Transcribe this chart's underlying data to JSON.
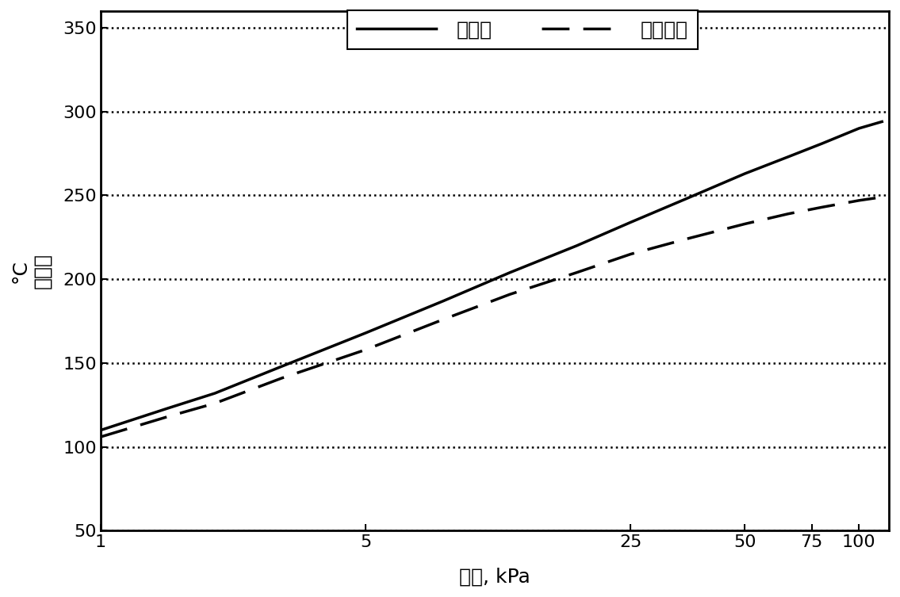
{
  "xlabel": "压力, kPa",
  "ylabel_line1": "°C",
  "ylabel_line2": "沸点，",
  "legend_solid": "呂喂酥",
  "legend_dashed": "邻苯二酥",
  "ylim": [
    50,
    360
  ],
  "yticks": [
    50,
    100,
    150,
    200,
    250,
    300,
    350
  ],
  "xticks": [
    1,
    5,
    25,
    50,
    75,
    100
  ],
  "xlim_log": [
    1,
    120
  ],
  "furanol_x": [
    1,
    1.5,
    2,
    3,
    5,
    8,
    12,
    18,
    25,
    35,
    50,
    65,
    80,
    100,
    115
  ],
  "furanol_y": [
    110,
    123,
    132,
    148,
    168,
    187,
    204,
    220,
    234,
    248,
    263,
    273,
    281,
    290,
    294
  ],
  "catechol_x": [
    1,
    1.5,
    2,
    3,
    5,
    8,
    12,
    18,
    25,
    35,
    50,
    65,
    80,
    100,
    115
  ],
  "catechol_y": [
    106,
    118,
    126,
    141,
    158,
    176,
    191,
    204,
    215,
    224,
    233,
    239,
    243,
    247,
    249
  ],
  "line_color": "#000000",
  "bg_color": "#ffffff",
  "line_width": 2.5,
  "grid_linewidth": 1.8,
  "tick_fontsize": 16,
  "label_fontsize": 18,
  "legend_fontsize": 18
}
